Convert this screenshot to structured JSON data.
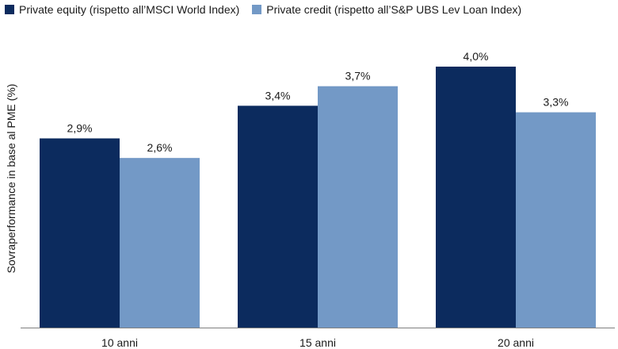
{
  "colors": {
    "series_1": "#0c2b5e",
    "series_2": "#7399c6",
    "axis": "#7f7f7f",
    "text": "#1a1a1a"
  },
  "chart_data": {
    "type": "bar",
    "title": "",
    "xlabel": "",
    "ylabel": "Sovraperformance in base al PME (%)",
    "categories": [
      "10 anni",
      "15 anni",
      "20 anni"
    ],
    "series": [
      {
        "name": "Private equity (rispetto all’MSCI World Index)",
        "values": [
          2.9,
          3.4,
          4.0
        ],
        "labels": [
          "2,9%",
          "3,4%",
          "4,0%"
        ]
      },
      {
        "name": "Private credit (rispetto all’S&P UBS Lev Loan Index)",
        "values": [
          2.6,
          3.7,
          3.3
        ],
        "labels": [
          "2,6%",
          "3,7%",
          "3,3%"
        ]
      }
    ],
    "ylim": [
      0,
      4.0
    ],
    "grid": false,
    "legend_position": "top-left"
  }
}
